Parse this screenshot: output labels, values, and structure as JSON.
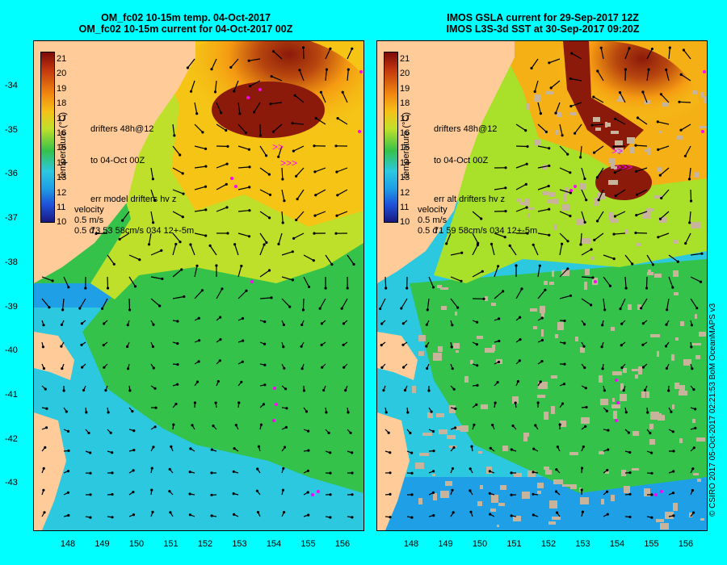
{
  "left_panel": {
    "title_line1": "OM_fc02 10-15m temp. 04-Oct-2017",
    "title_line2": "OM_fc02 10-15m current for 04-Oct-2017 00Z",
    "legend_drifters": "drifters 48h@12",
    "legend_to": "to 04-Oct 00Z",
    "legend_err1": "err model drifters hv z",
    "legend_err2": "73 53 58cm/s 034 12+-5m"
  },
  "right_panel": {
    "title_line1": "IMOS GSLA current for 29-Sep-2017 12Z",
    "title_line2": "IMOS L3S-3d SST at 30-Sep-2017 09:20Z",
    "legend_drifters": "drifters 48h@12",
    "legend_to": "to 04-Oct 00Z",
    "legend_err1": "err alt drifters hv z",
    "legend_err2": "71 59 58cm/s 034 12+-5m"
  },
  "colorbar": {
    "label": "temperature (°C)",
    "ticks": [
      "21",
      "20",
      "19",
      "18",
      "17",
      "16",
      "15",
      "14",
      "13",
      "12",
      "11",
      "10"
    ],
    "range": [
      10,
      21
    ]
  },
  "velocity_key": {
    "title": "velocity",
    "speed": "0.5 m/s",
    "duration": "0.5 d"
  },
  "axes": {
    "lat_ticks": [
      "-34",
      "-35",
      "-36",
      "-37",
      "-38",
      "-39",
      "-40",
      "-41",
      "-42",
      "-43"
    ],
    "lon_ticks": [
      "148",
      "149",
      "150",
      "151",
      "152",
      "153",
      "154",
      "155",
      "156"
    ]
  },
  "credit": "© CSIRO 2017   05-Oct-2017 02:21:53 BoM OceanMAPS v3",
  "colors": {
    "background": "#00FFFF",
    "land": "#FFCC99",
    "drifters": "#FF00FF",
    "velocity_arrows": "#000000"
  }
}
